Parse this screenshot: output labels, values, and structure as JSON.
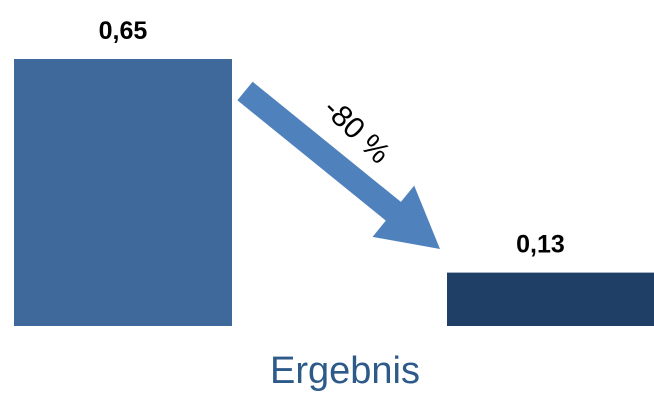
{
  "chart_data": {
    "type": "bar",
    "categories": [
      "",
      ""
    ],
    "values": [
      0.65,
      0.13
    ],
    "value_labels": [
      "0,65",
      "0,13"
    ],
    "colors": [
      "#3f699b",
      "#1f3f66"
    ],
    "arrow_color": "#4f81bd",
    "change_label": "-80 %",
    "category_label": "Ergebnis",
    "title": "",
    "xlabel": "",
    "ylabel": "",
    "ylim": [
      0,
      0.65
    ],
    "grid": false,
    "legend": "none"
  }
}
